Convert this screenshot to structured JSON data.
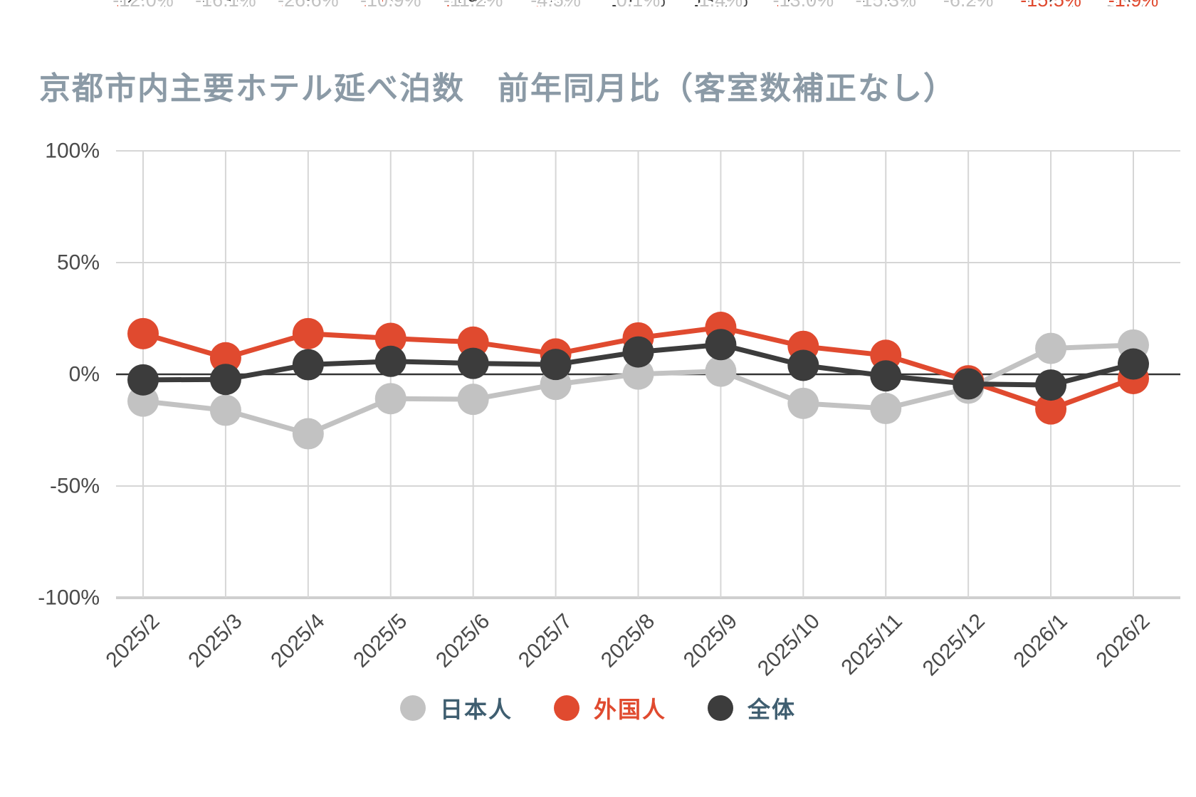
{
  "title": "京都市内主要ホテル延べ泊数　前年同月比（客室数補正なし）",
  "chart_data": {
    "type": "line",
    "title": "京都市内主要ホテル延べ泊数　前年同月比（客室数補正なし）",
    "categories": [
      "2025/2",
      "2025/3",
      "2025/4",
      "2025/5",
      "2025/6",
      "2025/7",
      "2025/8",
      "2025/9",
      "2025/10",
      "2025/11",
      "2025/12",
      "2026/1",
      "2026/2"
    ],
    "series": [
      {
        "name": "日本人",
        "color": "#c2c2c2",
        "legend_text_color": "#3f5e70",
        "values": [
          -12.0,
          -16.1,
          -26.6,
          -10.9,
          -11.2,
          -4.5,
          0.1,
          1.4,
          -13.0,
          -15.3,
          -6.2,
          11.6,
          13.1
        ]
      },
      {
        "name": "外国人",
        "color": "#e04a2f",
        "legend_text_color": "#e04a2f",
        "values": [
          18.2,
          7.4,
          18.2,
          16.1,
          14.4,
          9.1,
          16.3,
          21.0,
          12.5,
          8.5,
          -2.9,
          -15.5,
          -1.9
        ]
      },
      {
        "name": "全体",
        "color": "#3c3c3c",
        "legend_text_color": "#3f5e70",
        "values": [
          -2.5,
          -2.3,
          4.3,
          5.8,
          4.9,
          4.4,
          10.0,
          13.3,
          4.0,
          -0.7,
          -4.3,
          -4.8,
          4.6
        ]
      }
    ],
    "xlabel": "",
    "ylabel": "",
    "ylim": [
      -100,
      100
    ],
    "y_ticks": [
      {
        "value": 100,
        "label": "100%"
      },
      {
        "value": 50,
        "label": "50%"
      },
      {
        "value": 0,
        "label": "0%"
      },
      {
        "value": -50,
        "label": "-50%"
      },
      {
        "value": -100,
        "label": "-100%"
      }
    ],
    "value_suffix": "%",
    "grid": true,
    "legend_position": "bottom"
  },
  "colors": {
    "background": "#ffffff",
    "title": "#8b9aa6",
    "axis_text": "#4a4a4a",
    "grid": "#d6d6d6",
    "zero_line": "#333333",
    "baseline": "#cfcfcf",
    "label_halo": "#ffffff"
  }
}
